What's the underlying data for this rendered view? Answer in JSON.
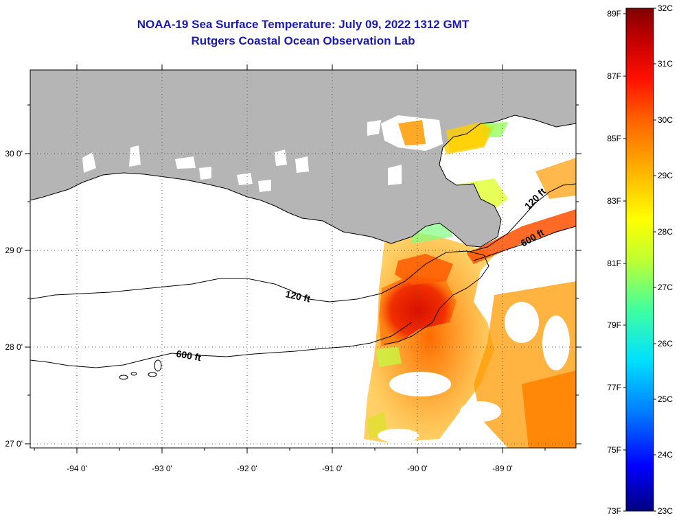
{
  "header": {
    "title": "NOAA-19 Sea Surface Temperature:  July 09, 2022 1312 GMT",
    "subtitle": "Rutgers Coastal Ocean Observation Lab"
  },
  "map": {
    "lon_labels": [
      "-94 0'",
      "-93 0'",
      "-92 0'",
      "-91 0'",
      "-90 0'",
      "-89 0'"
    ],
    "lat_labels": [
      "30 0'",
      "29 0'",
      "28 0'",
      "27 0'"
    ],
    "contours": [
      {
        "label": "120 ft"
      },
      {
        "label": "600 ft"
      },
      {
        "label": "120 ft"
      },
      {
        "label": "600 ft"
      }
    ],
    "land_color": "#b5b5b5",
    "no_data_color": "#ffffff"
  },
  "colorbar": {
    "fahrenheit_labels": [
      "89F",
      "87F",
      "85F",
      "83F",
      "81F",
      "79F",
      "77F",
      "75F",
      "73F"
    ],
    "celsius_labels": [
      "32C",
      "31C",
      "30C",
      "29C",
      "28C",
      "27C",
      "26C",
      "25C",
      "24C",
      "23C"
    ],
    "stops": [
      "#000080",
      "#0000ff",
      "#0080ff",
      "#00e0ff",
      "#40ffa0",
      "#c0ff30",
      "#ffff00",
      "#ffb000",
      "#ff6000",
      "#ff1000",
      "#c00000",
      "#800000"
    ]
  }
}
